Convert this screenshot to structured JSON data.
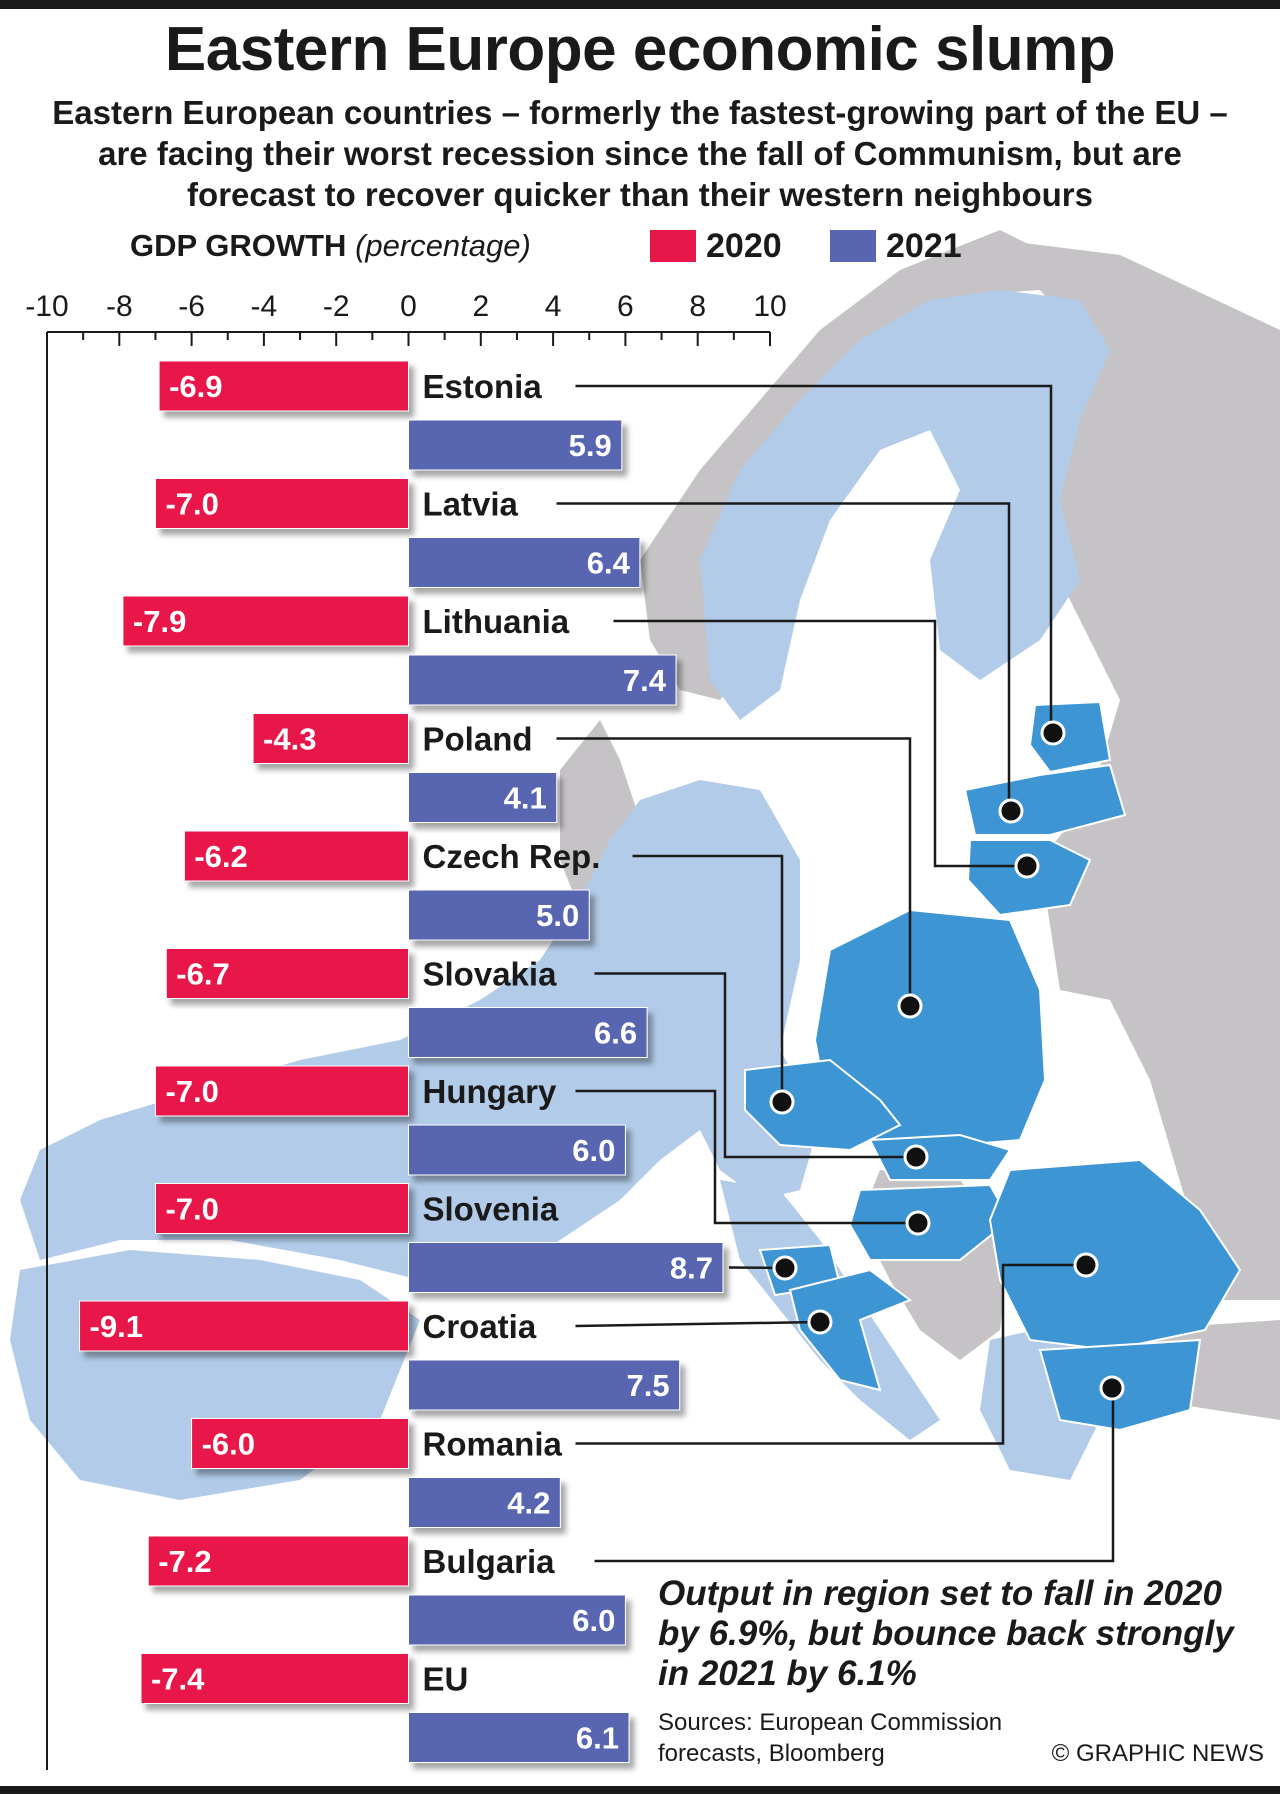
{
  "header": {
    "title": "Eastern Europe economic slump",
    "subtitle": "Eastern European countries – formerly the fastest-growing part of the EU – are facing their worst recession since the fall of Communism, but are forecast to recover quicker than their western neighbours"
  },
  "legend": {
    "axis_title": "GDP GROWTH",
    "axis_unit": "(percentage)",
    "items": [
      {
        "label": "2020",
        "color": "#e8174a"
      },
      {
        "label": "2021",
        "color": "#5865b0"
      }
    ]
  },
  "chart_data": {
    "type": "bar",
    "orientation": "horizontal",
    "xlabel": "GDP GROWTH (percentage)",
    "xlim": [
      -10,
      10
    ],
    "x_ticks": [
      -10,
      -8,
      -6,
      -4,
      -2,
      0,
      2,
      4,
      6,
      8,
      10
    ],
    "categories": [
      "Estonia",
      "Latvia",
      "Lithuania",
      "Poland",
      "Czech Rep.",
      "Slovakia",
      "Hungary",
      "Slovenia",
      "Croatia",
      "Romania",
      "Bulgaria",
      "EU"
    ],
    "series": [
      {
        "name": "2020",
        "color": "#e8174a",
        "values": [
          -6.9,
          -7.0,
          -7.9,
          -4.3,
          -6.2,
          -6.7,
          -7.0,
          -7.0,
          -9.1,
          -6.0,
          -7.2,
          -7.4
        ]
      },
      {
        "name": "2021",
        "color": "#5865b0",
        "values": [
          5.9,
          6.4,
          7.4,
          4.1,
          5.0,
          6.6,
          6.0,
          8.7,
          7.5,
          4.2,
          6.0,
          6.1
        ]
      }
    ],
    "data_labels": {
      "2020": [
        "-6.9",
        "-7.0",
        "-7.9",
        "-4.3",
        "-6.2",
        "-6.7",
        "-7.0",
        "-7.0",
        "-9.1",
        "-6.0",
        "-7.2",
        "-7.4"
      ],
      "2021": [
        "5.9",
        "6.4",
        "7.4",
        "4.1",
        "5.0",
        "6.6",
        "6.0",
        "8.7",
        "7.5",
        "4.2",
        "6.0",
        "6.1"
      ]
    },
    "grid": false
  },
  "note": "Output in region set to fall in 2020 by 6.9%, but bounce back strongly in 2021 by 6.1%",
  "sources": "Sources: European Commission forecasts, Bloomberg",
  "credit": "© GRAPHIC NEWS",
  "map_colors": {
    "eu_member": "#b2cbe8",
    "highlighted_country": "#3d95d4",
    "non_eu": "#c6c3c7",
    "sea": "#ffffff"
  }
}
